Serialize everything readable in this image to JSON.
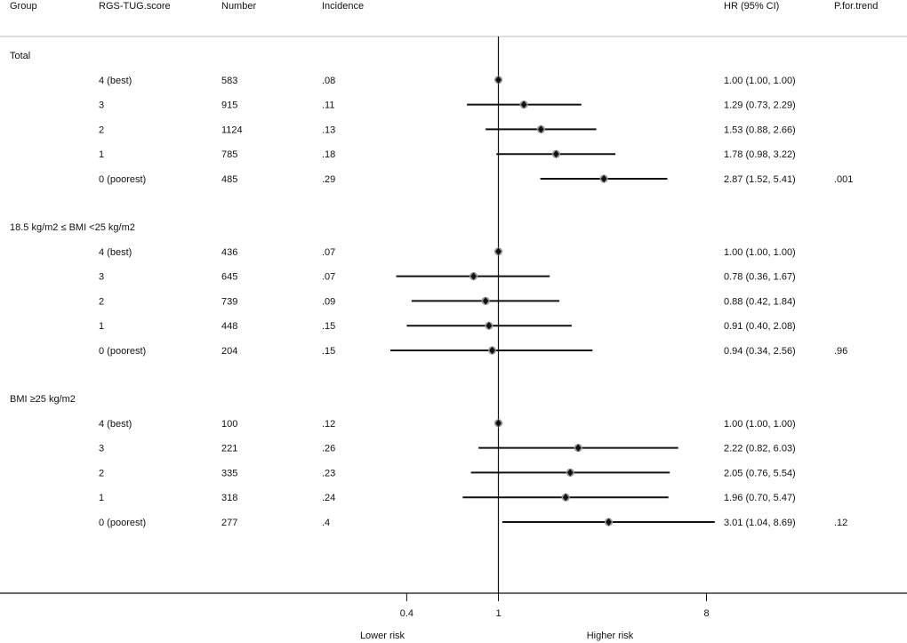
{
  "columns": {
    "group": "Group",
    "score": "RGS-TUG.score",
    "number": "Number",
    "incidence": "Incidence",
    "hr": "HR (95% CI)",
    "p": "P.for.trend"
  },
  "axis": {
    "scale": "log2",
    "xlim": [
      0.25,
      10
    ],
    "ticks": [
      {
        "value": 0.4,
        "label": "0.4"
      },
      {
        "value": 1,
        "label": "1"
      },
      {
        "value": 8,
        "label": "8"
      }
    ],
    "reference": 1,
    "lower_label": "Lower risk",
    "higher_label": "Higher risk"
  },
  "chart_data": {
    "type": "forest",
    "title": "",
    "xlabel": "",
    "groups": [
      {
        "label": "Total",
        "p_trend": ".001",
        "rows": [
          {
            "score": "4 (best)",
            "number": "583",
            "incidence": ".08",
            "hr": 1.0,
            "lo": 1.0,
            "hi": 1.0,
            "hr_text": "1.00 (1.00, 1.00)"
          },
          {
            "score": "3",
            "number": "915",
            "incidence": ".11",
            "hr": 1.29,
            "lo": 0.73,
            "hi": 2.29,
            "hr_text": "1.29 (0.73, 2.29)"
          },
          {
            "score": "2",
            "number": "1124",
            "incidence": ".13",
            "hr": 1.53,
            "lo": 0.88,
            "hi": 2.66,
            "hr_text": "1.53 (0.88, 2.66)"
          },
          {
            "score": "1",
            "number": "785",
            "incidence": ".18",
            "hr": 1.78,
            "lo": 0.98,
            "hi": 3.22,
            "hr_text": "1.78 (0.98, 3.22)"
          },
          {
            "score": "0 (poorest)",
            "number": "485",
            "incidence": ".29",
            "hr": 2.87,
            "lo": 1.52,
            "hi": 5.41,
            "hr_text": "2.87 (1.52, 5.41)"
          }
        ]
      },
      {
        "label": "18.5 kg/m2 ≤ BMI <25 kg/m2",
        "p_trend": ".96",
        "rows": [
          {
            "score": "4 (best)",
            "number": "436",
            "incidence": ".07",
            "hr": 1.0,
            "lo": 1.0,
            "hi": 1.0,
            "hr_text": "1.00 (1.00, 1.00)"
          },
          {
            "score": "3",
            "number": "645",
            "incidence": ".07",
            "hr": 0.78,
            "lo": 0.36,
            "hi": 1.67,
            "hr_text": "0.78 (0.36, 1.67)"
          },
          {
            "score": "2",
            "number": "739",
            "incidence": ".09",
            "hr": 0.88,
            "lo": 0.42,
            "hi": 1.84,
            "hr_text": "0.88 (0.42, 1.84)"
          },
          {
            "score": "1",
            "number": "448",
            "incidence": ".15",
            "hr": 0.91,
            "lo": 0.4,
            "hi": 2.08,
            "hr_text": "0.91 (0.40, 2.08)"
          },
          {
            "score": "0 (poorest)",
            "number": "204",
            "incidence": ".15",
            "hr": 0.94,
            "lo": 0.34,
            "hi": 2.56,
            "hr_text": "0.94 (0.34, 2.56)"
          }
        ]
      },
      {
        "label": "BMI ≥25 kg/m2",
        "p_trend": ".12",
        "rows": [
          {
            "score": "4 (best)",
            "number": "100",
            "incidence": ".12",
            "hr": 1.0,
            "lo": 1.0,
            "hi": 1.0,
            "hr_text": "1.00 (1.00, 1.00)"
          },
          {
            "score": "3",
            "number": "221",
            "incidence": ".26",
            "hr": 2.22,
            "lo": 0.82,
            "hi": 6.03,
            "hr_text": "2.22 (0.82, 6.03)"
          },
          {
            "score": "2",
            "number": "335",
            "incidence": ".23",
            "hr": 2.05,
            "lo": 0.76,
            "hi": 5.54,
            "hr_text": "2.05 (0.76, 5.54)"
          },
          {
            "score": "1",
            "number": "318",
            "incidence": ".24",
            "hr": 1.96,
            "lo": 0.7,
            "hi": 5.47,
            "hr_text": "1.96 (0.70, 5.47)"
          },
          {
            "score": "0 (poorest)",
            "number": "277",
            "incidence": ".4",
            "hr": 3.01,
            "lo": 1.04,
            "hi": 8.69,
            "hr_text": "3.01 (1.04, 8.69)"
          }
        ]
      }
    ]
  }
}
